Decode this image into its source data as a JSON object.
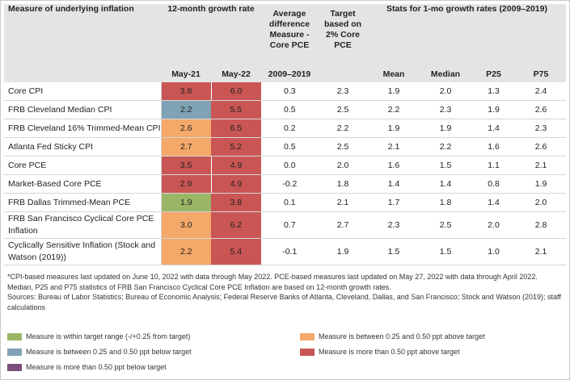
{
  "chart_data": {
    "type": "table",
    "headers": {
      "measure": "Measure of underlying inflation",
      "growth_group": "12-month growth rate",
      "may21": "May-21",
      "may22": "May-22",
      "avg_diff": "Average difference Measure - Core PCE",
      "avg_diff_period": "2009–2019",
      "target": "Target based on 2% Core PCE",
      "stats_group": "Stats for 1-mo growth rates (2009–2019)",
      "mean": "Mean",
      "median": "Median",
      "p25": "P25",
      "p75": "P75"
    },
    "rows": [
      {
        "measure": "Core CPI",
        "may21": "3.8",
        "may21_cat": "red",
        "may22": "6.0",
        "may22_cat": "red",
        "avg_diff": "0.3",
        "target": "2.3",
        "mean": "1.9",
        "median": "2.0",
        "p25": "1.3",
        "p75": "2.4"
      },
      {
        "measure": "FRB Cleveland Median CPI",
        "may21": "2.2",
        "may21_cat": "blue",
        "may22": "5.5",
        "may22_cat": "red",
        "avg_diff": "0.5",
        "target": "2.5",
        "mean": "2.2",
        "median": "2.3",
        "p25": "1.9",
        "p75": "2.6"
      },
      {
        "measure": "FRB Cleveland 16% Trimmed-Mean CPI",
        "may21": "2.6",
        "may21_cat": "orange",
        "may22": "6.5",
        "may22_cat": "red",
        "avg_diff": "0.2",
        "target": "2.2",
        "mean": "1.9",
        "median": "1.9",
        "p25": "1.4",
        "p75": "2.3"
      },
      {
        "measure": "Atlanta Fed Sticky CPI",
        "may21": "2.7",
        "may21_cat": "orange",
        "may22": "5.2",
        "may22_cat": "red",
        "avg_diff": "0.5",
        "target": "2.5",
        "mean": "2.1",
        "median": "2.2",
        "p25": "1.6",
        "p75": "2.6"
      },
      {
        "measure": "Core PCE",
        "may21": "3.5",
        "may21_cat": "red",
        "may22": "4.9",
        "may22_cat": "red",
        "avg_diff": "0.0",
        "target": "2.0",
        "mean": "1.6",
        "median": "1.5",
        "p25": "1.1",
        "p75": "2.1"
      },
      {
        "measure": "Market-Based Core PCE",
        "may21": "2.9",
        "may21_cat": "red",
        "may22": "4.9",
        "may22_cat": "red",
        "avg_diff": "-0.2",
        "target": "1.8",
        "mean": "1.4",
        "median": "1.4",
        "p25": "0.8",
        "p75": "1.9"
      },
      {
        "measure": "FRB Dallas Trimmed-Mean PCE",
        "may21": "1.9",
        "may21_cat": "green",
        "may22": "3.8",
        "may22_cat": "red",
        "avg_diff": "0.1",
        "target": "2.1",
        "mean": "1.7",
        "median": "1.8",
        "p25": "1.4",
        "p75": "2.0"
      },
      {
        "measure": "FRB San Francisco Cyclical Core PCE Inflation",
        "may21": "3.0",
        "may21_cat": "orange",
        "may22": "6.2",
        "may22_cat": "red",
        "avg_diff": "0.7",
        "target": "2.7",
        "mean": "2.3",
        "median": "2.5",
        "p25": "2.0",
        "p75": "2.8",
        "tall": true
      },
      {
        "measure": "Cyclically Sensitive Inflation (Stock and Watson (2019))",
        "may21": "2.2",
        "may21_cat": "orange",
        "may22": "5.4",
        "may22_cat": "red",
        "avg_diff": "-0.1",
        "target": "1.9",
        "mean": "1.5",
        "median": "1.5",
        "p25": "1.0",
        "p75": "2.1",
        "tall": true
      }
    ]
  },
  "notes": {
    "line1": "*CPI-based measures last updated on June 10, 2022 with data through May 2022. PCE-based measures last updated on May 27, 2022 with data through April 2022. Median, P25 and P75 statistics of FRB San Francisco Cyclical Core PCE Inflation are based on 12-month growth rates.",
    "line2": "Sources: Bureau of Labor Statistics; Bureau of Economic Analysis; Federal Reserve Banks of Atlanta, Cleveland, Dallas, and San Francisco; Stock and Watson (2019); staff calculations"
  },
  "legend": {
    "green": "Measure is within target range (-/+0.25 from target)",
    "blue": "Measure is between 0.25 and 0.50 ppt below target",
    "purple": "Measure is more than 0.50 ppt below target",
    "orange": "Measure is between 0.25 and 0.50 ppt above target",
    "red": "Measure is more than 0.50 ppt above target"
  },
  "colors": {
    "green": "#9bb567",
    "blue": "#7fa2b5",
    "purple": "#7e4f7d",
    "orange": "#f4a86a",
    "red": "#c95654",
    "header_bg": "#e4e4e4"
  }
}
